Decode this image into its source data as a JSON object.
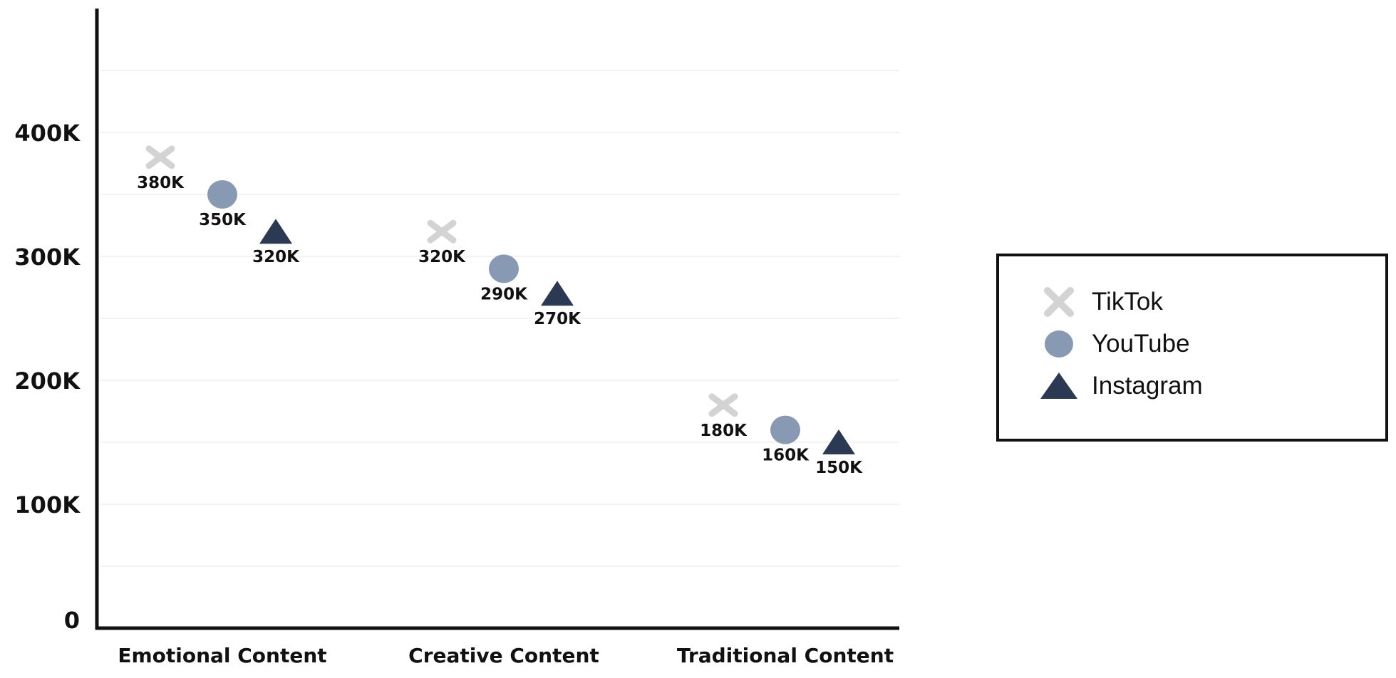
{
  "chart_data": {
    "type": "scatter",
    "categories": [
      "Emotional Content",
      "Creative Content",
      "Traditional Content"
    ],
    "yticks": [
      {
        "value": 0,
        "label": "0"
      },
      {
        "value": 100000,
        "label": "100K"
      },
      {
        "value": 200000,
        "label": "200K"
      },
      {
        "value": 300000,
        "label": "300K"
      },
      {
        "value": 400000,
        "label": "400K"
      }
    ],
    "ylim": [
      0,
      500000
    ],
    "grid": true,
    "legend_position": "right",
    "series": [
      {
        "name": "TikTok",
        "marker": "cross",
        "color": "#d3d3d3",
        "values": [
          380000,
          320000,
          180000
        ],
        "labels": [
          "380K",
          "320K",
          "180K"
        ]
      },
      {
        "name": "YouTube",
        "marker": "circle",
        "color": "#8899b4",
        "values": [
          350000,
          290000,
          160000
        ],
        "labels": [
          "350K",
          "290K",
          "160K"
        ]
      },
      {
        "name": "Instagram",
        "marker": "triangle",
        "color": "#2b3a52",
        "values": [
          320000,
          270000,
          150000
        ],
        "labels": [
          "320K",
          "270K",
          "150K"
        ]
      }
    ]
  }
}
